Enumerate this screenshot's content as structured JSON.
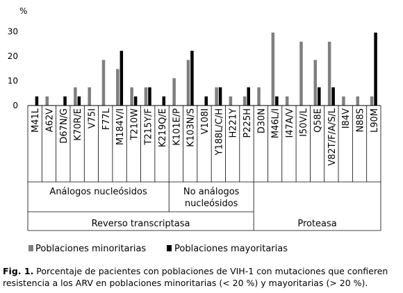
{
  "chart_data": {
    "type": "bar",
    "ylabel": "%",
    "ylim": [
      0,
      35
    ],
    "yticks": [
      0,
      10,
      20,
      30
    ],
    "grid": false,
    "legend_position": "bottom",
    "categories": [
      "M41L",
      "A62V",
      "D67N/G",
      "K70R/E",
      "V75I",
      "F77L",
      "M184V/I",
      "T210W",
      "T215Y/F",
      "K219Q/E",
      "K101E/P",
      "K103N/S",
      "V108I",
      "Y188L/C/H",
      "H221Y",
      "P225H",
      "D30N",
      "M46L/I",
      "I47A/V",
      "I50V/L",
      "Q58E",
      "V82T/F/A/S/L",
      "I84V",
      "N88S",
      "L90M"
    ],
    "series": [
      {
        "name": "Poblaciones minoritarias",
        "color": "#7f7f7f",
        "values": [
          0,
          3.7,
          0,
          7.4,
          7.4,
          18.5,
          14.8,
          7.4,
          7.4,
          0,
          11.1,
          18.5,
          0,
          7.4,
          3.7,
          3.7,
          7.4,
          29.6,
          3.7,
          25.9,
          18.5,
          25.9,
          3.7,
          3.7,
          3.7
        ]
      },
      {
        "name": "Poblaciones mayoritarias",
        "color": "#000000",
        "values": [
          3.7,
          0,
          3.7,
          3.7,
          0,
          0,
          22.2,
          3.7,
          7.4,
          3.7,
          0,
          22.2,
          3.7,
          7.4,
          0,
          7.4,
          0,
          3.7,
          0,
          0,
          7.4,
          7.4,
          0,
          0,
          29.6
        ]
      }
    ],
    "groups": [
      {
        "label": "Análogos nucleósidos",
        "start": 0,
        "end": 9
      },
      {
        "label": "No análogos nucleósidos",
        "start": 10,
        "end": 15
      },
      {
        "label": "Reverso transcriptasa",
        "start": 0,
        "end": 15
      },
      {
        "label": "Proteasa",
        "start": 16,
        "end": 24
      }
    ]
  },
  "caption": {
    "label": "Fig. 1.",
    "text": " Porcentaje de pacientes con poblaciones de VIH-1 con mutaciones que confieren resistencia a los ARV en poblaciones minoritarias (< 20 %) y mayoritarias (> 20 %)."
  }
}
